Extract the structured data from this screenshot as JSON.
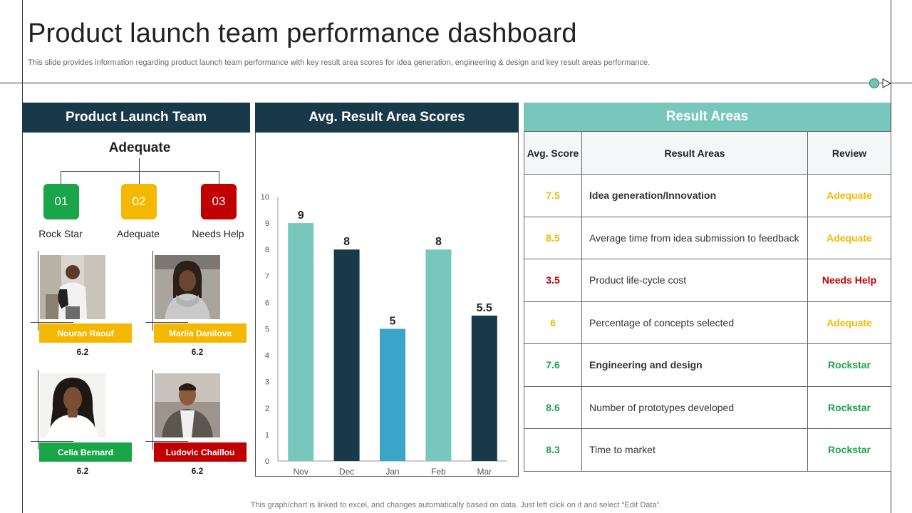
{
  "header": {
    "title": "Product launch team performance dashboard",
    "subtitle": "This slide provides information regarding product launch team performance with key result area scores for idea generation, engineering & design and key result areas performance."
  },
  "team_panel": {
    "heading": "Product Launch Team",
    "overall_level": "Adequate",
    "levels": [
      {
        "num": "01",
        "label": "Rock Star",
        "color": "#1aa54a"
      },
      {
        "num": "02",
        "label": "Adequate",
        "color": "#f5b800"
      },
      {
        "num": "03",
        "label": "Needs Help",
        "color": "#c00000"
      }
    ],
    "members": [
      {
        "name": "Nouran Raouf",
        "score": "6.2",
        "color": "#f5b800"
      },
      {
        "name": "Mariia Danilova",
        "score": "6.2",
        "color": "#f5b800"
      },
      {
        "name": "Celia Bernard",
        "score": "6.2",
        "color": "#1aa54a"
      },
      {
        "name": "Ludovic Chaillou",
        "score": "6.2",
        "color": "#c00000"
      }
    ]
  },
  "chart_panel": {
    "heading": "Avg. Result Area Scores"
  },
  "chart_data": {
    "type": "bar",
    "categories": [
      "Nov",
      "Dec",
      "Jan",
      "Feb",
      "Mar"
    ],
    "values": [
      9,
      8,
      5,
      8,
      5.5
    ],
    "data_labels": [
      "9",
      "8",
      "5",
      "8",
      "5.5"
    ],
    "bar_colors": [
      "#78c7bc",
      "#17394a",
      "#3aa5c9",
      "#78c7bc",
      "#17394a"
    ],
    "ylim": [
      0,
      10
    ],
    "yticks": [
      "0",
      "1",
      "2",
      "3",
      "4",
      "5",
      "6",
      "7",
      "8",
      "9",
      "10"
    ],
    "grid": false,
    "legend": "none"
  },
  "results_panel": {
    "heading": "Result Areas",
    "columns": [
      "Avg. Score",
      "Result Areas",
      "Review"
    ],
    "rows": [
      {
        "score": "7.5",
        "area": "Idea generation/Innovation",
        "review": "Adequate",
        "color": "#f5b800",
        "bold": true
      },
      {
        "score": "8.5",
        "area": "Average time from idea submission to feedback",
        "review": "Adequate",
        "color": "#f5b800",
        "bold": false
      },
      {
        "score": "3.5",
        "area": "Product life-cycle cost",
        "review": "Needs Help",
        "color": "#c00000",
        "bold": false
      },
      {
        "score": "6",
        "area": "Percentage of concepts selected",
        "review": "Adequate",
        "color": "#f5b800",
        "bold": false
      },
      {
        "score": "7.6",
        "area": "Engineering and design",
        "review": "Rockstar",
        "color": "#1aa54a",
        "bold": true
      },
      {
        "score": "8.6",
        "area": "Number of prototypes developed",
        "review": "Rockstar",
        "color": "#1aa54a",
        "bold": false
      },
      {
        "score": "8.3",
        "area": "Time to market",
        "review": "Rockstar",
        "color": "#1aa54a",
        "bold": false
      }
    ]
  },
  "footer": {
    "note": "This graph/chart is linked to excel, and changes automatically based on data. Just left click on it and select “Edit Data”."
  }
}
